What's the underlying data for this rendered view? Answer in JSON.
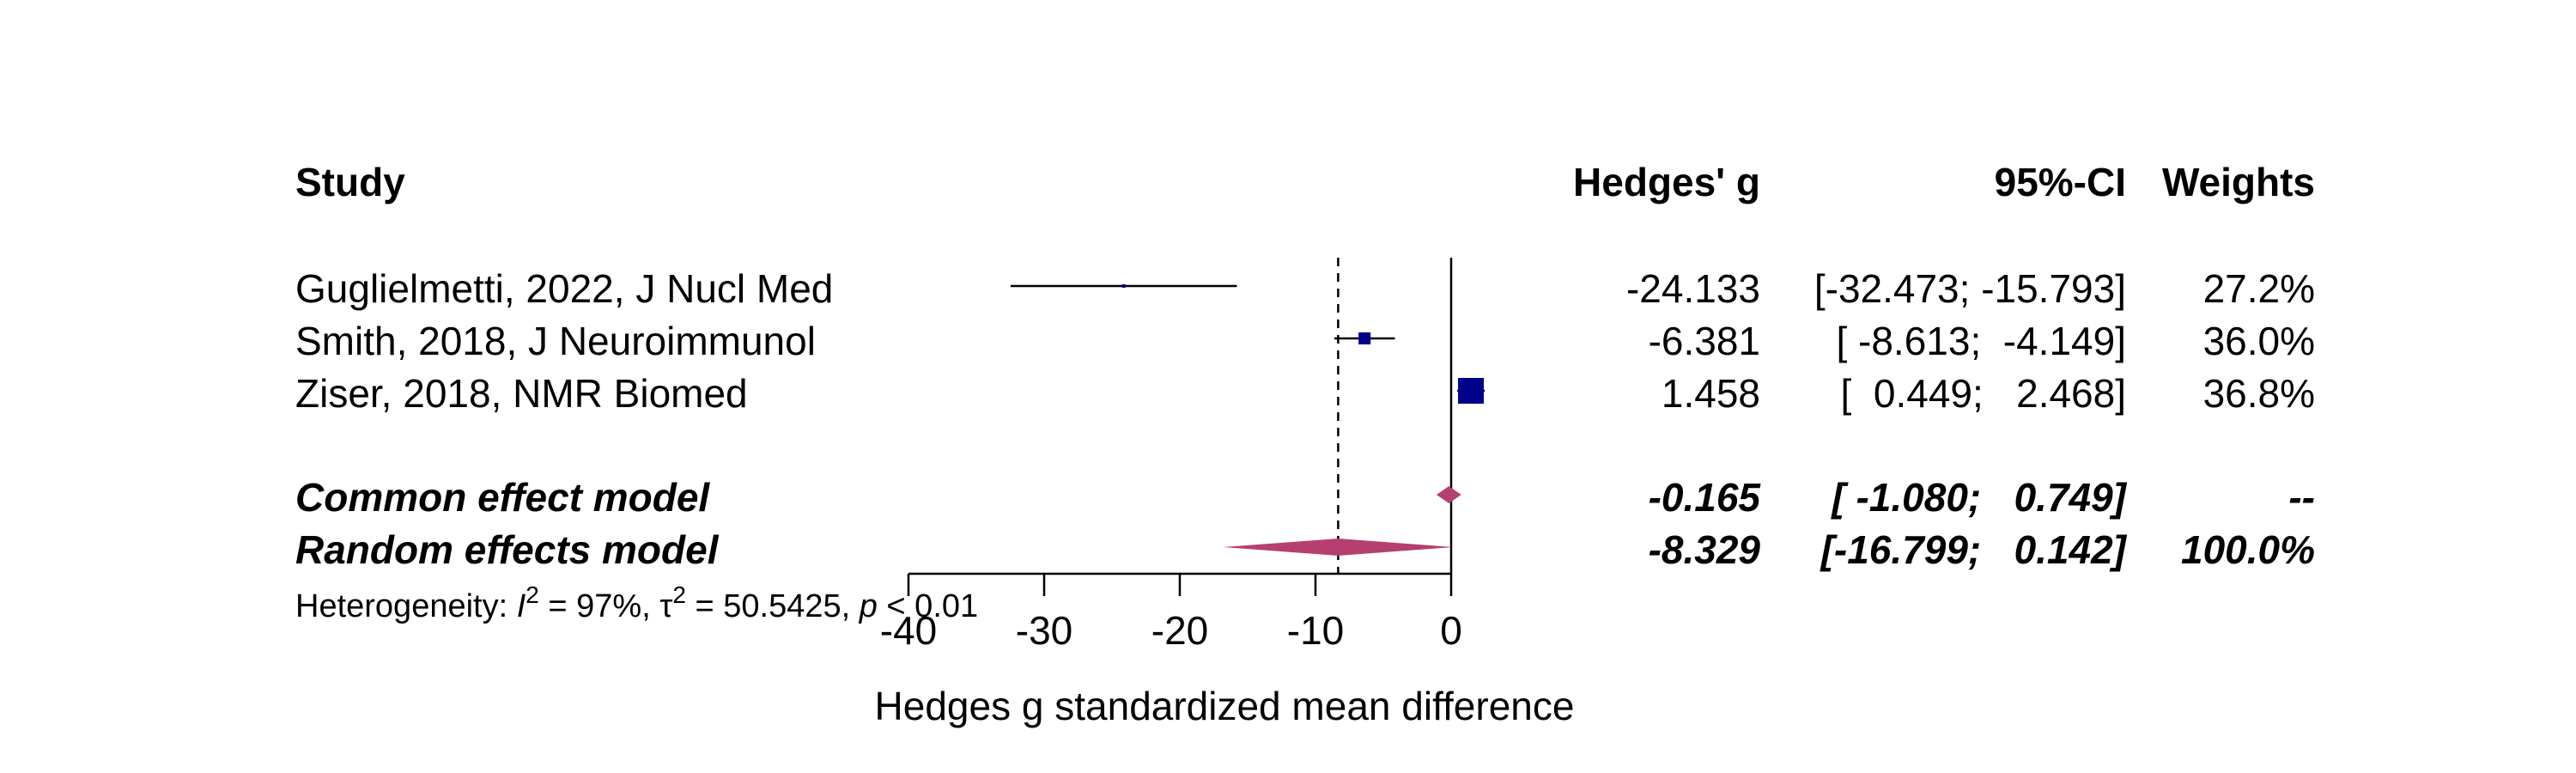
{
  "header": {
    "study": "Study",
    "effect": "Hedges' g",
    "ci": "95%-CI",
    "weights": "Weights"
  },
  "colors": {
    "study_square": "#00008B",
    "summary_diamond": "#B5406F",
    "lines": "#000000"
  },
  "rows": [
    {
      "label": "Guglielmetti, 2022, J Nucl Med",
      "g_text": "-24.133",
      "ci_text": "[-32.473; -15.793]",
      "weight_text": "27.2%"
    },
    {
      "label": "Smith, 2018, J Neuroimmunol",
      "g_text": "-6.381",
      "ci_text": "[ -8.613;  -4.149]",
      "weight_text": "36.0%"
    },
    {
      "label": "Ziser, 2018, NMR Biomed",
      "g_text": "1.458",
      "ci_text": "[  0.449;   2.468]",
      "weight_text": "36.8%"
    }
  ],
  "summary": [
    {
      "label": "Common effect model",
      "g_text": "-0.165",
      "ci_text": "[ -1.080;   0.749]",
      "weight_text": "--"
    },
    {
      "label": "Random effects model",
      "g_text": "-8.329",
      "ci_text": "[-16.799;   0.142]",
      "weight_text": "100.0%"
    }
  ],
  "heterogeneity": {
    "prefix": "Heterogeneity: ",
    "i2_symbol": "I",
    "i2_value": " = 97%, ",
    "tau_symbol": "τ",
    "tau_value": " = 50.5425, ",
    "p_symbol": "p",
    "p_value": " < 0.01",
    "sup": "2"
  },
  "chart_data": {
    "type": "forest",
    "measure": "Hedges' g",
    "xlabel": "Hedges g standardized mean difference",
    "xticks": [
      -40,
      -30,
      -20,
      -10,
      0
    ],
    "xlim": [
      -40,
      0
    ],
    "null_value": 0,
    "studies": [
      {
        "name": "Guglielmetti, 2022, J Nucl Med",
        "g": -24.133,
        "lower": -32.473,
        "upper": -15.793,
        "weight": 27.2
      },
      {
        "name": "Smith, 2018, J Neuroimmunol",
        "g": -6.381,
        "lower": -8.613,
        "upper": -4.149,
        "weight": 36.0
      },
      {
        "name": "Ziser, 2018, NMR Biomed",
        "g": 1.458,
        "lower": 0.449,
        "upper": 2.468,
        "weight": 36.8
      }
    ],
    "common_effect": {
      "name": "Common effect model",
      "g": -0.165,
      "lower": -1.08,
      "upper": 0.749
    },
    "random_effects": {
      "name": "Random effects model",
      "g": -8.329,
      "lower": -16.799,
      "upper": 0.142,
      "weight": 100.0
    }
  }
}
